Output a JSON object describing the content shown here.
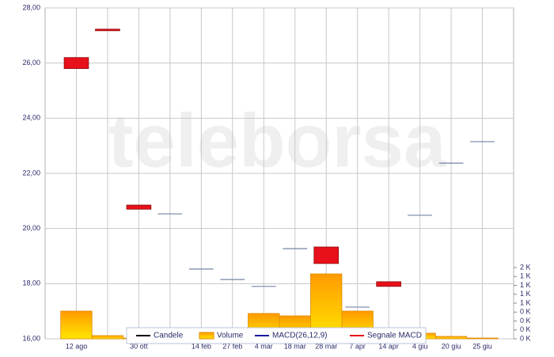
{
  "chart_data": {
    "type": "candlestick",
    "watermark": "teleborsa",
    "categories": [
      "12 ago",
      null,
      "30 ott",
      null,
      "14 feb",
      "27 feb",
      "4 mar",
      "18 mar",
      "28 mar",
      "7 apr",
      "14 apr",
      "4 giu",
      "20 giu",
      "25 giu"
    ],
    "ylim": [
      16,
      28
    ],
    "yticks": [
      {
        "value": 16,
        "label": "16,00"
      },
      {
        "value": 18,
        "label": "18,00"
      },
      {
        "value": 20,
        "label": "20,00"
      },
      {
        "value": 22,
        "label": "22,00"
      },
      {
        "value": 24,
        "label": "24,00"
      },
      {
        "value": 26,
        "label": "26,00"
      },
      {
        "value": 28,
        "label": "28,00"
      }
    ],
    "y2lim": [
      0,
      2000
    ],
    "y2ticks": [
      {
        "value": 0,
        "label": "0 K"
      },
      {
        "value": 250,
        "label": "0 K"
      },
      {
        "value": 500,
        "label": "0 K"
      },
      {
        "value": 750,
        "label": "0 K"
      },
      {
        "value": 1000,
        "label": "1 K"
      },
      {
        "value": 1250,
        "label": "1 K"
      },
      {
        "value": 1500,
        "label": "1 K"
      },
      {
        "value": 1750,
        "label": "1 K"
      },
      {
        "value": 2000,
        "label": "2 K"
      }
    ],
    "grid": true,
    "legend": "bottom",
    "series": [
      {
        "name": "Candele",
        "color": "#000000",
        "down_color": "#e8101a",
        "flat_color": "#7385a6",
        "open": [
          26.2,
          27.23,
          20.85,
          20.53,
          18.53,
          18.15,
          17.9,
          19.27,
          19.33,
          17.15,
          18.07,
          20.48,
          22.37,
          23.15
        ],
        "close": [
          25.8,
          27.2,
          20.7,
          20.53,
          18.53,
          18.15,
          17.9,
          19.27,
          18.73,
          17.15,
          17.9,
          20.48,
          22.37,
          23.15
        ]
      },
      {
        "name": "Volume",
        "color": "#ffa500",
        "axis": "y2",
        "values": [
          778,
          89,
          20,
          null,
          null,
          null,
          711,
          644,
          1822,
          778,
          null,
          156,
          67,
          22
        ]
      },
      {
        "name": "MACD(26,12,9)",
        "color": "#1a1aa0"
      },
      {
        "name": "Segnale MACD",
        "color": "#e8101a"
      }
    ]
  }
}
